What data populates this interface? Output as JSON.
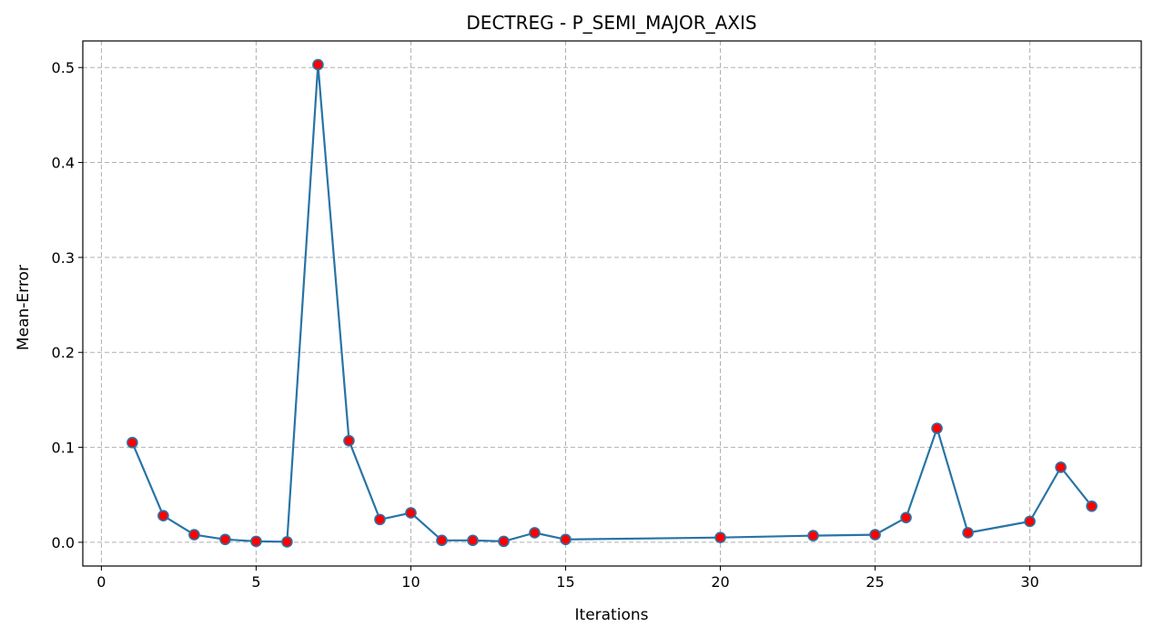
{
  "chart_data": {
    "type": "line",
    "title": "DECTREG - P_SEMI_MAJOR_AXIS",
    "xlabel": "Iterations",
    "ylabel": "Mean-Error",
    "xlim": [
      -0.6,
      33.6
    ],
    "ylim": [
      -0.025,
      0.528
    ],
    "xticks": [
      0,
      5,
      10,
      15,
      20,
      25,
      30
    ],
    "yticks": [
      0.0,
      0.1,
      0.2,
      0.3,
      0.4,
      0.5
    ],
    "xtick_labels": [
      "0",
      "5",
      "10",
      "15",
      "20",
      "25",
      "30"
    ],
    "ytick_labels": [
      "0.0",
      "0.1",
      "0.2",
      "0.3",
      "0.4",
      "0.5"
    ],
    "grid": true,
    "line_color": "#2874a6",
    "marker_color": "#ff0000",
    "series": [
      {
        "x": [
          1,
          2,
          3,
          4,
          5,
          6,
          7,
          8,
          9,
          10,
          11,
          12,
          13,
          14,
          15,
          20,
          23,
          25,
          26,
          27,
          28,
          30,
          31,
          32
        ],
        "values": [
          0.105,
          0.028,
          0.008,
          0.003,
          0.001,
          0.0005,
          0.503,
          0.107,
          0.024,
          0.031,
          0.002,
          0.002,
          0.001,
          0.01,
          0.003,
          0.005,
          0.007,
          0.008,
          0.026,
          0.12,
          0.01,
          0.022,
          0.079,
          0.038
        ]
      }
    ]
  }
}
